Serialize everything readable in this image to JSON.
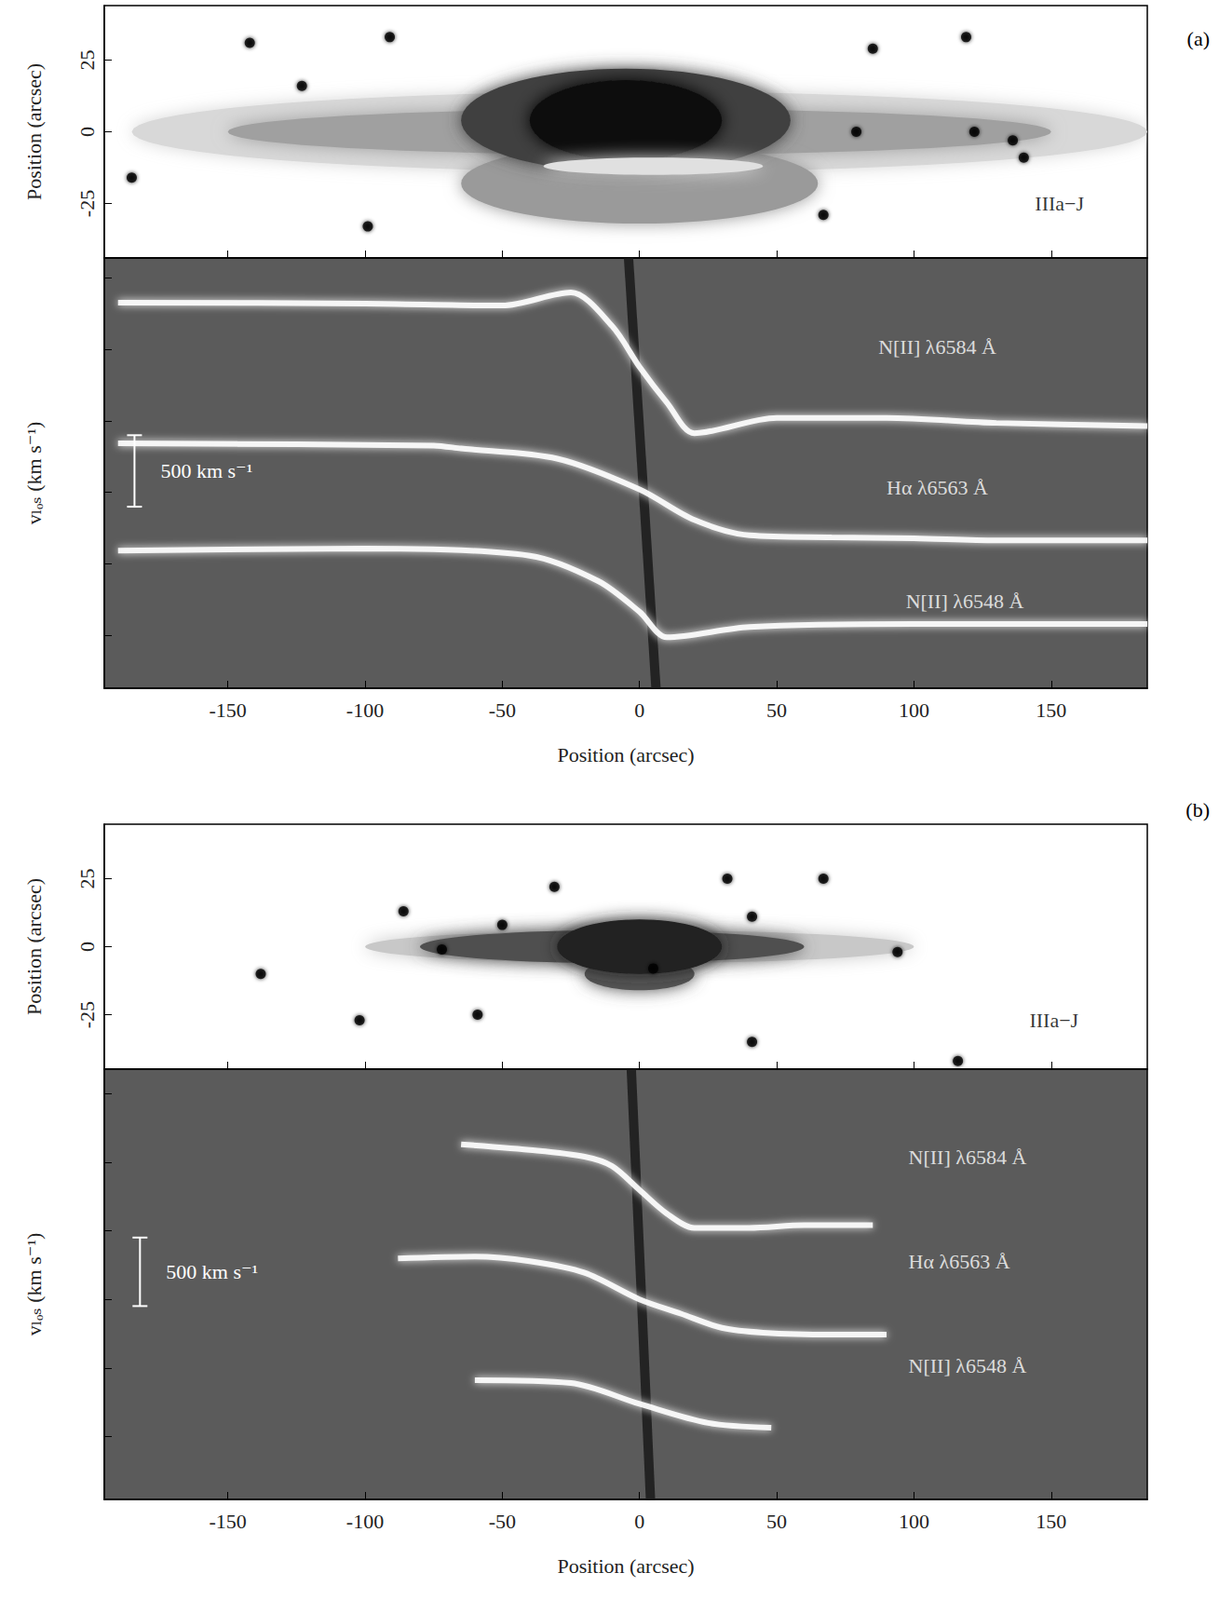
{
  "chart_data": [
    {
      "type": "scatter",
      "panel_label": "(a)",
      "ylabel": "Position (arcsec)",
      "xlim": [
        -195,
        185
      ],
      "xticks": [
        -150,
        -100,
        -50,
        0,
        50,
        100,
        150
      ],
      "ylim": [
        -44,
        44
      ],
      "yticks": [
        -25,
        0,
        25
      ],
      "tick_labels": "y",
      "band": {
        "text": "IIIa−J",
        "x": 153,
        "y": -25
      },
      "stars": {
        "x": [
          -142,
          -123,
          -91,
          -185,
          -99,
          85,
          119,
          79,
          122,
          136,
          140,
          67
        ],
        "y": [
          31,
          16,
          33,
          -16,
          -33,
          29,
          33,
          0,
          0,
          -3,
          -9,
          -29
        ],
        "color": "#000000"
      },
      "ellipses": [
        [
          0,
          0,
          185,
          14
        ],
        [
          0,
          0,
          150,
          8
        ],
        [
          0,
          -18,
          65,
          14
        ],
        [
          -5,
          4,
          60,
          18
        ],
        [
          -5,
          4,
          35,
          14
        ],
        [
          5,
          -12,
          40,
          3
        ]
      ],
      "colors": [
        "#d8d8d8",
        "#a0a0a0",
        "#9a9a9a",
        "#404040",
        "#111111",
        "#e0e0e0"
      ]
    },
    {
      "type": "line",
      "xlabel": "Position (arcsec)",
      "ylabel": "vₗₒₛ (km s⁻¹)",
      "xlim": [
        -195,
        185
      ],
      "xticks": [
        -150,
        -100,
        -50,
        0,
        50,
        100,
        150
      ],
      "ylim": [
        -1370,
        1640
      ],
      "yticks": [
        -1000,
        -500,
        0,
        500,
        1000,
        1500
      ],
      "tick_labels": "x",
      "absorption": {
        "x": [
          -4,
          6
        ],
        "values": [
          1640,
          -1370
        ],
        "color": "#1a1a1a"
      },
      "scale_bar": {
        "x": -184,
        "from": -100,
        "to": 400,
        "label": "500 km s⁻¹"
      },
      "series": [
        {
          "label": {
            "text": "N[II] λ6584 Å",
            "x": 87,
            "y": 1021
          },
          "color": "#ffffff",
          "x": [
            -190,
            -100,
            -50,
            -25,
            -10,
            0,
            10,
            20,
            50,
            90,
            130,
            185
          ],
          "values": [
            1328,
            1321,
            1307,
            1399,
            1164,
            878,
            628,
            414,
            521,
            521,
            486,
            464
          ]
        },
        {
          "label": {
            "text": "Hα λ6563 Å",
            "x": 90,
            "y": 36
          },
          "color": "#ffffff",
          "x": [
            -190,
            -75,
            -65,
            -30,
            0,
            20,
            40,
            70,
            100,
            130,
            160,
            185
          ],
          "values": [
            343,
            328,
            307,
            236,
            21,
            -193,
            -300,
            -314,
            -321,
            -336,
            -336,
            -336
          ]
        },
        {
          "label": {
            "text": "N[II] λ6548 Å",
            "x": 97,
            "y": -764
          },
          "color": "#ffffff",
          "x": [
            -190,
            -100,
            -40,
            -15,
            0,
            10,
            40,
            100,
            185
          ],
          "values": [
            -407,
            -393,
            -443,
            -621,
            -835,
            -1014,
            -942,
            -921,
            -921
          ]
        }
      ]
    },
    {
      "type": "scatter",
      "panel_label": "(b)",
      "ylabel": "Position (arcsec)",
      "xlim": [
        -195,
        185
      ],
      "xticks": [
        -150,
        -100,
        -50,
        0,
        50,
        100,
        150
      ],
      "ylim": [
        -45,
        45
      ],
      "yticks": [
        -25,
        0,
        25
      ],
      "tick_labels": "y",
      "band": {
        "text": "IIIa−J",
        "x": 151,
        "y": -27
      },
      "stars": {
        "x": [
          -72,
          -50,
          5,
          -59,
          32,
          41,
          67,
          94,
          41,
          116,
          -102,
          -138,
          -86,
          -31
        ],
        "y": [
          -1,
          8,
          -8,
          -25,
          25,
          11,
          25,
          -2,
          -35,
          -42,
          -27,
          -10,
          13,
          22
        ],
        "color": "#000000"
      },
      "ellipses": [
        [
          0,
          0,
          100,
          6
        ],
        [
          -10,
          0,
          70,
          6
        ],
        [
          0,
          -10,
          20,
          6
        ],
        [
          0,
          0,
          30,
          10
        ]
      ],
      "colors": [
        "#c8c8c8",
        "#505050",
        "#555555",
        "#202020"
      ]
    },
    {
      "type": "line",
      "xlabel": "Position (arcsec)",
      "ylabel": "vₗₒₛ (km s⁻¹)",
      "xlim": [
        -195,
        185
      ],
      "xticks": [
        -150,
        -100,
        -50,
        0,
        50,
        100,
        150
      ],
      "ylim": [
        -1460,
        1680
      ],
      "yticks": [
        -1000,
        -500,
        0,
        500,
        1000,
        1500
      ],
      "tick_labels": "x",
      "absorption": {
        "x": [
          -3,
          4
        ],
        "values": [
          1680,
          -1460
        ],
        "color": "#1a1a1a"
      },
      "scale_bar": {
        "x": -182,
        "from": -49,
        "to": 451,
        "label": "500 km s⁻¹"
      },
      "series": [
        {
          "label": {
            "text": "N[II] λ6584 Å",
            "x": 98,
            "y": 1041
          },
          "color": "#ffffff",
          "x": [
            -65,
            -40,
            -20,
            -10,
            0,
            10,
            20,
            40,
            60,
            85
          ],
          "values": [
            1131,
            1090,
            1041,
            972,
            798,
            625,
            521,
            521,
            541,
            541
          ]
        },
        {
          "label": {
            "text": "Hα λ6563 Å",
            "x": 98,
            "y": 278
          },
          "color": "#ffffff",
          "x": [
            -88,
            -60,
            -40,
            -20,
            0,
            15,
            30,
            45,
            70,
            90
          ],
          "values": [
            298,
            312,
            278,
            194,
            0,
            -104,
            -208,
            -243,
            -257,
            -257
          ]
        },
        {
          "label": {
            "text": "N[II] λ6548 Å",
            "x": 98,
            "y": -486
          },
          "color": "#ffffff",
          "x": [
            -60,
            -25,
            0,
            25,
            48
          ],
          "values": [
            -590,
            -611,
            -763,
            -902,
            -937
          ]
        }
      ]
    }
  ]
}
